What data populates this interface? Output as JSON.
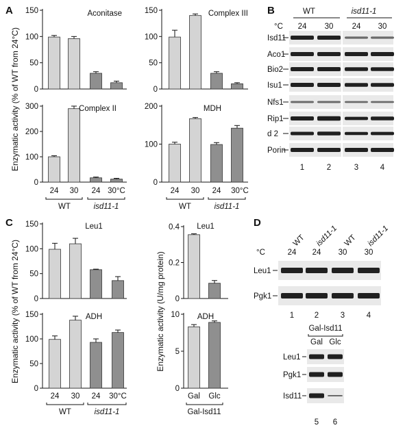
{
  "panels": {
    "A": {
      "letter": "A",
      "ylabel": "Enzymatic activity (% of WT from 24°C)",
      "xgroups": [
        "WT",
        "isd11-1"
      ],
      "temps": [
        "24",
        "30",
        "24",
        "30°C"
      ],
      "charts": [
        {
          "title": "Aconitase",
          "ylim": [
            0,
            150
          ],
          "ticks": [
            "0",
            "50",
            "100",
            "150"
          ],
          "values": [
            99,
            96,
            30,
            12
          ],
          "errors": [
            3,
            4,
            3,
            3
          ]
        },
        {
          "title": "Complex III",
          "ylim": [
            0,
            150
          ],
          "ticks": [
            "0",
            "50",
            "100",
            "150"
          ],
          "values": [
            99,
            140,
            30,
            10
          ],
          "errors": [
            13,
            3,
            3,
            2
          ]
        },
        {
          "title": "Complex II",
          "ylim": [
            0,
            300
          ],
          "ticks": [
            "0",
            "100",
            "200",
            "300"
          ],
          "values": [
            100,
            290,
            17,
            12
          ],
          "errors": [
            4,
            10,
            3,
            3
          ]
        },
        {
          "title": "MDH",
          "ylim": [
            0,
            200
          ],
          "ticks": [
            "0",
            "100",
            "200"
          ],
          "values": [
            100,
            167,
            99,
            142
          ],
          "errors": [
            5,
            3,
            5,
            7
          ]
        }
      ]
    },
    "B": {
      "letter": "B",
      "unit": "°C",
      "groups": [
        "WT",
        "isd11-1"
      ],
      "temps": [
        "24",
        "30",
        "24",
        "30"
      ],
      "lanes": [
        "1",
        "2",
        "3",
        "4"
      ],
      "rows": [
        "Isd11",
        "Aco1",
        "Bio2",
        "Isu1",
        "Nfs1",
        "Rip1",
        "d 2",
        "Porin"
      ]
    },
    "C": {
      "letter": "C",
      "ylabel_left": "Enzymatic activity (% of WT from 24°C)",
      "ylabel_right": "Enzymatic activity (U/mg protein)",
      "xgroups": [
        "WT",
        "isd11-1"
      ],
      "temps": [
        "24",
        "30",
        "24",
        "30°C"
      ],
      "right_cats": [
        "Gal",
        "Glc"
      ],
      "right_group": "Gal-Isd11",
      "charts": [
        {
          "title": "Leu1",
          "ylim": [
            0,
            150
          ],
          "ticks": [
            "0",
            "50",
            "100",
            "150"
          ],
          "values": [
            99,
            110,
            58,
            36
          ],
          "errors": [
            12,
            11,
            1,
            8
          ]
        },
        {
          "title": "ADH",
          "ylim": [
            0,
            150
          ],
          "ticks": [
            "0",
            "50",
            "100",
            "150"
          ],
          "values": [
            99,
            138,
            93,
            113
          ],
          "errors": [
            7,
            8,
            7,
            5
          ]
        },
        {
          "title": "Leu1",
          "ylim": [
            0,
            0.4
          ],
          "ticks": [
            "0",
            "0.2",
            "0.4"
          ],
          "values": [
            0.355,
            0.085
          ],
          "errors": [
            0.005,
            0.015
          ]
        },
        {
          "title": "ADH",
          "ylim": [
            0,
            10
          ],
          "ticks": [
            "0",
            "5",
            "10"
          ],
          "values": [
            8.3,
            8.9
          ],
          "errors": [
            0.3,
            0.2
          ]
        }
      ]
    },
    "D": {
      "letter": "D",
      "unit": "°C",
      "strains": [
        "WT",
        "isd11-1",
        "WT",
        "isd11-1"
      ],
      "temps": [
        "24",
        "24",
        "30",
        "30"
      ],
      "lanes": [
        "1",
        "2",
        "3",
        "4"
      ],
      "rows": [
        "Leu1",
        "Pgk1"
      ],
      "group2": "Gal-Isd11",
      "cats2": [
        "Gal",
        "Glc"
      ],
      "rows2": [
        "Leu1",
        "Pgk1",
        "Isd11"
      ],
      "lanes2": [
        "5",
        "6"
      ]
    }
  },
  "chart_data": [
    {
      "type": "bar",
      "title": "Aconitase",
      "categories": [
        "WT 24",
        "WT 30",
        "isd11-1 24",
        "isd11-1 30"
      ],
      "values": [
        99,
        96,
        30,
        12
      ],
      "errors": [
        3,
        4,
        3,
        3
      ],
      "ylabel": "Enzymatic activity (% of WT from 24°C)",
      "ylim": [
        0,
        150
      ]
    },
    {
      "type": "bar",
      "title": "Complex III",
      "categories": [
        "WT 24",
        "WT 30",
        "isd11-1 24",
        "isd11-1 30"
      ],
      "values": [
        99,
        140,
        30,
        10
      ],
      "errors": [
        13,
        3,
        3,
        2
      ],
      "ylim": [
        0,
        150
      ]
    },
    {
      "type": "bar",
      "title": "Complex II",
      "categories": [
        "WT 24",
        "WT 30",
        "isd11-1 24",
        "isd11-1 30"
      ],
      "values": [
        100,
        290,
        17,
        12
      ],
      "errors": [
        4,
        10,
        3,
        3
      ],
      "ylim": [
        0,
        300
      ]
    },
    {
      "type": "bar",
      "title": "MDH",
      "categories": [
        "WT 24",
        "WT 30",
        "isd11-1 24",
        "isd11-1 30"
      ],
      "values": [
        100,
        167,
        99,
        142
      ],
      "errors": [
        5,
        3,
        5,
        7
      ],
      "ylim": [
        0,
        200
      ]
    },
    {
      "type": "bar",
      "title": "Leu1",
      "categories": [
        "WT 24",
        "WT 30",
        "isd11-1 24",
        "isd11-1 30"
      ],
      "values": [
        99,
        110,
        58,
        36
      ],
      "errors": [
        12,
        11,
        1,
        8
      ],
      "ylim": [
        0,
        150
      ]
    },
    {
      "type": "bar",
      "title": "ADH",
      "categories": [
        "WT 24",
        "WT 30",
        "isd11-1 24",
        "isd11-1 30"
      ],
      "values": [
        99,
        138,
        93,
        113
      ],
      "errors": [
        7,
        8,
        7,
        5
      ],
      "ylim": [
        0,
        150
      ]
    },
    {
      "type": "bar",
      "title": "Leu1",
      "categories": [
        "Gal",
        "Glc"
      ],
      "values": [
        0.355,
        0.085
      ],
      "errors": [
        0.005,
        0.015
      ],
      "ylabel": "Enzymatic activity (U/mg protein)",
      "ylim": [
        0,
        0.4
      ]
    },
    {
      "type": "bar",
      "title": "ADH",
      "categories": [
        "Gal",
        "Glc"
      ],
      "values": [
        8.3,
        8.9
      ],
      "errors": [
        0.3,
        0.2
      ],
      "ylim": [
        0,
        10
      ]
    }
  ]
}
